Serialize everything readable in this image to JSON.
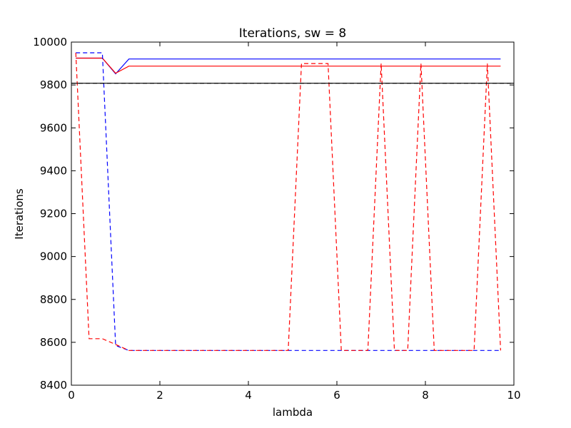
{
  "chart_data": {
    "type": "line",
    "title": "Iterations, sw = 8",
    "xlabel": "lambda",
    "ylabel": "Iterations",
    "xlim": [
      0,
      10
    ],
    "ylim": [
      8400,
      10000
    ],
    "grid": false,
    "legend": "none",
    "xticks": [
      0,
      2,
      4,
      6,
      8,
      10
    ],
    "yticks": [
      8400,
      8600,
      8800,
      9000,
      9200,
      9400,
      9600,
      9800,
      10000
    ],
    "series": [
      {
        "color": "#0000ff",
        "style": "solid",
        "x": [
          0.1,
          0.4,
          0.7,
          1.0,
          1.3,
          1.6,
          2.0,
          3.0,
          4.0,
          5.0,
          6.0,
          7.0,
          8.0,
          9.0,
          9.7
        ],
        "y": [
          9925,
          9925,
          9925,
          9852,
          9921,
          9921,
          9921,
          9921,
          9921,
          9921,
          9921,
          9921,
          9921,
          9921,
          9921
        ]
      },
      {
        "color": "#ff0000",
        "style": "solid",
        "x": [
          0.1,
          0.4,
          0.7,
          1.0,
          1.3,
          1.6,
          2.0,
          3.0,
          4.0,
          5.0,
          6.0,
          7.0,
          8.0,
          9.0,
          9.7
        ],
        "y": [
          9925,
          9925,
          9925,
          9855,
          9888,
          9888,
          9888,
          9888,
          9888,
          9888,
          9888,
          9888,
          9888,
          9888,
          9888
        ]
      },
      {
        "color": "#0000ff",
        "style": "dashed",
        "x": [
          0.1,
          0.4,
          0.7,
          1.0,
          1.3,
          1.6,
          2.0,
          3.0,
          4.0,
          5.0,
          6.0,
          7.0,
          8.0,
          9.0,
          9.7
        ],
        "y": [
          9950,
          9950,
          9950,
          8585,
          8562,
          8562,
          8562,
          8562,
          8562,
          8562,
          8562,
          8562,
          8562,
          8562,
          8562
        ]
      },
      {
        "color": "#ff0000",
        "style": "dashed",
        "x": [
          0.1,
          0.4,
          0.7,
          1.0,
          1.3,
          1.6,
          1.9,
          2.2,
          2.5,
          2.8,
          3.1,
          3.4,
          3.7,
          4.0,
          4.3,
          4.6,
          4.9,
          5.2,
          5.5,
          5.8,
          6.1,
          6.4,
          6.7,
          7.0,
          7.3,
          7.6,
          7.9,
          8.2,
          8.5,
          8.8,
          9.1,
          9.4,
          9.7
        ],
        "y": [
          9950,
          8617,
          8617,
          8590,
          8562,
          8562,
          8562,
          8562,
          8562,
          8562,
          8562,
          8562,
          8562,
          8562,
          8562,
          8562,
          8562,
          9900,
          9900,
          9900,
          8562,
          8562,
          8562,
          9900,
          8562,
          8562,
          9900,
          8562,
          8562,
          8562,
          8562,
          9900,
          8562
        ]
      },
      {
        "color": "#000000",
        "style": "solid",
        "x": [
          0,
          10
        ],
        "y": [
          9808,
          9808
        ]
      },
      {
        "color": "#000000",
        "style": "dashed",
        "x": [
          0,
          10
        ],
        "y": [
          9808,
          9808
        ]
      }
    ]
  }
}
